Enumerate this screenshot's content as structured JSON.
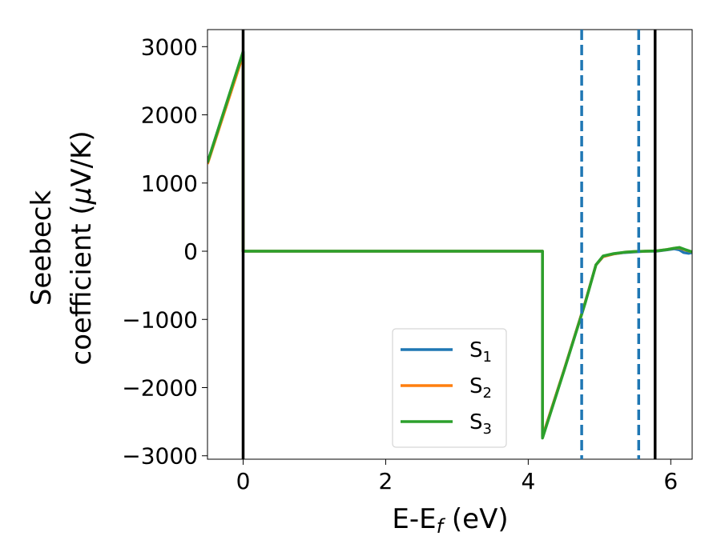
{
  "chart_data": {
    "type": "line",
    "title": "",
    "xlabel": "E-E",
    "xlabel_sub": "f",
    "xlabel_unit": " (eV)",
    "ylabel_line1": "Seebeck",
    "ylabel_line2": "coefficient  (",
    "ylabel_mu": "μ",
    "ylabel_unit": "V/K)",
    "xlim": [
      -0.5,
      6.3
    ],
    "ylim": [
      -3050,
      3250
    ],
    "xticks": [
      0,
      2,
      4,
      6
    ],
    "xtick_labels": [
      "0",
      "2",
      "4",
      "6"
    ],
    "yticks": [
      3000,
      2000,
      1000,
      0,
      -1000,
      -2000,
      -3000
    ],
    "ytick_labels": [
      "3000",
      "2000",
      "1000",
      "0",
      "−1000",
      "−2000",
      "−3000"
    ],
    "grid": false,
    "legend_position": "lower-center",
    "vertical_lines": [
      {
        "x": 0.0,
        "style": "solid",
        "color": "#000000"
      },
      {
        "x": 5.78,
        "style": "solid",
        "color": "#000000"
      },
      {
        "x": 4.75,
        "style": "dashed",
        "color": "#1f77b4"
      },
      {
        "x": 5.55,
        "style": "dashed",
        "color": "#1f77b4"
      }
    ],
    "series": [
      {
        "name": "S",
        "sub": "1",
        "color": "#1f77b4",
        "x": [
          -0.5,
          0.0,
          0.0,
          4.2,
          4.2,
          4.5,
          4.8,
          4.95,
          5.05,
          5.2,
          5.35,
          5.5,
          5.65,
          5.8,
          5.95,
          6.05,
          6.12,
          6.18,
          6.25,
          6.3
        ],
        "y": [
          1300,
          2920,
          0,
          0,
          -2720,
          -1750,
          -750,
          -200,
          -80,
          -40,
          -20,
          -10,
          0,
          0,
          20,
          35,
          20,
          -20,
          -30,
          -20
        ]
      },
      {
        "name": "S",
        "sub": "2",
        "color": "#ff7f0e",
        "x": [
          -0.5,
          0.0,
          0.0,
          4.2,
          4.2,
          4.5,
          4.8,
          4.95,
          5.05,
          5.2,
          5.35,
          5.5,
          5.65,
          5.8,
          5.95,
          6.05,
          6.12,
          6.2,
          6.3
        ],
        "y": [
          1280,
          2880,
          0,
          0,
          -2720,
          -1750,
          -750,
          -200,
          -80,
          -40,
          -15,
          -5,
          0,
          5,
          25,
          45,
          50,
          20,
          -10
        ]
      },
      {
        "name": "S",
        "sub": "3",
        "color": "#2ca02c",
        "x": [
          -0.5,
          0.0,
          0.0,
          4.2,
          4.2,
          4.5,
          4.8,
          4.95,
          5.05,
          5.2,
          5.35,
          5.5,
          5.65,
          5.8,
          5.95,
          6.05,
          6.12,
          6.2,
          6.3
        ],
        "y": [
          1300,
          2930,
          0,
          0,
          -2740,
          -1760,
          -760,
          -200,
          -70,
          -35,
          -15,
          -5,
          0,
          5,
          25,
          45,
          55,
          25,
          -10
        ]
      }
    ]
  }
}
